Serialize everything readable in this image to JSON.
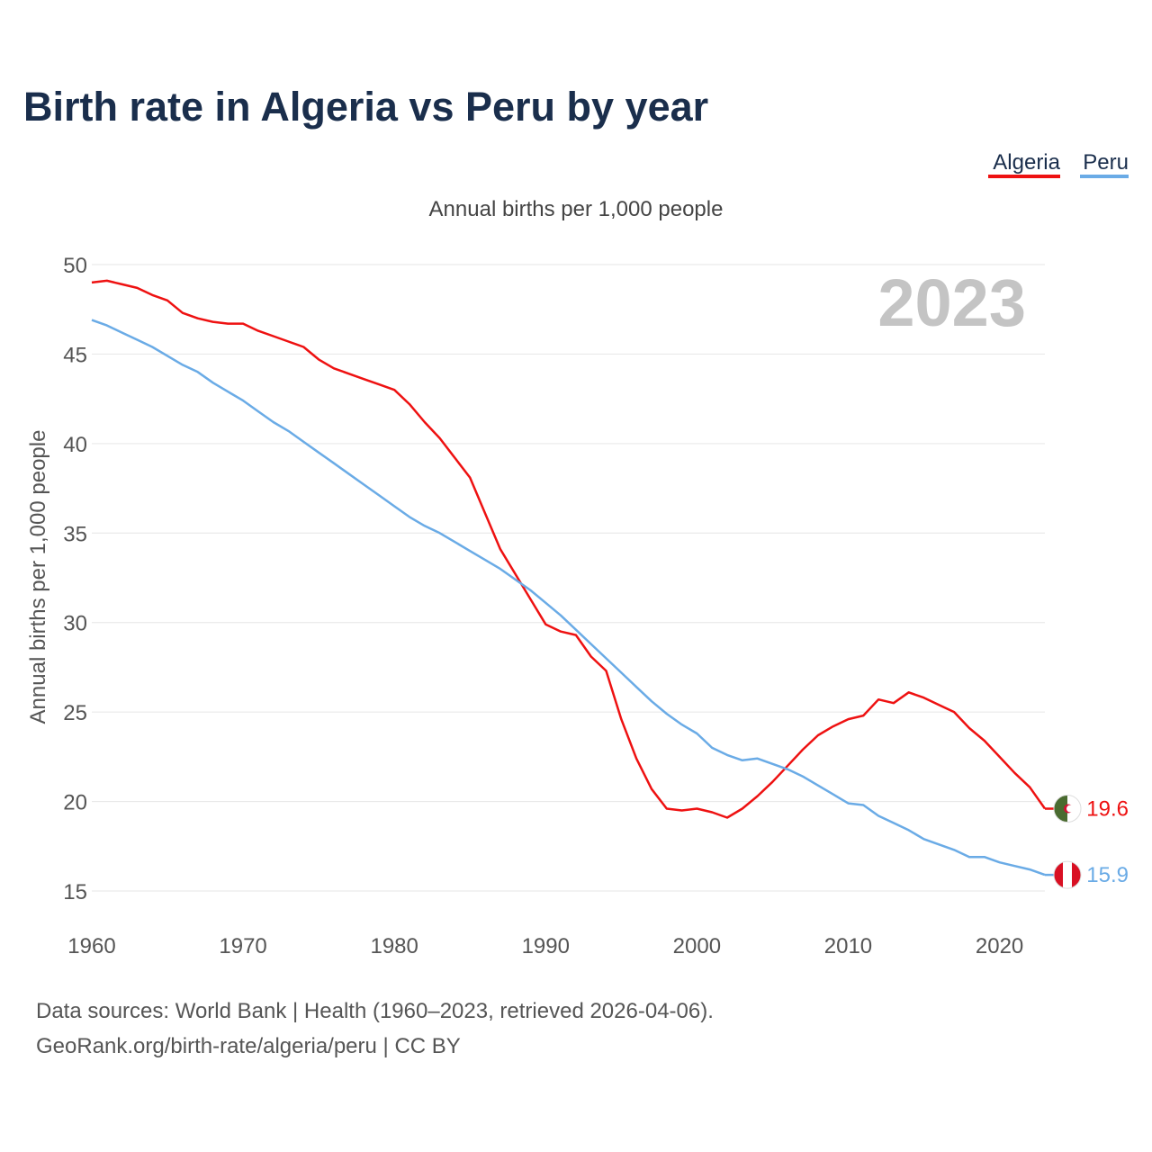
{
  "title": "Birth rate in Algeria vs Peru by year",
  "subtitle": "Annual births per 1,000 people",
  "ylabel": "Annual births per 1,000 people",
  "year_badge": "2023",
  "footer": {
    "line1": "Data sources: World Bank | Health (1960–2023, retrieved 2026-04-06).",
    "line2": "GeoRank.org/birth-rate/algeria/peru | CC BY"
  },
  "colors": {
    "algeria": "#ee1111",
    "peru": "#6aabe6",
    "title": "#1a2e4c",
    "grid": "#e6e6e6",
    "tick": "#555555",
    "badge": "#c4c4c4",
    "algeria_flag_green": "#4a6b30",
    "peru_flag_red": "#d91023"
  },
  "chart_data": {
    "type": "line",
    "title": "Birth rate in Algeria vs Peru by year",
    "subtitle": "Annual births per 1,000 people",
    "ylabel": "Annual births per 1,000 people",
    "xlabel": "",
    "xlim": [
      1960,
      2023
    ],
    "ylim": [
      15,
      50
    ],
    "xticks": [
      1960,
      1970,
      1980,
      1990,
      2000,
      2010,
      2020
    ],
    "yticks": [
      15,
      20,
      25,
      30,
      35,
      40,
      45,
      50
    ],
    "grid": true,
    "legend": "top-right",
    "x": [
      1960,
      1961,
      1962,
      1963,
      1964,
      1965,
      1966,
      1967,
      1968,
      1969,
      1970,
      1971,
      1972,
      1973,
      1974,
      1975,
      1976,
      1977,
      1978,
      1979,
      1980,
      1981,
      1982,
      1983,
      1984,
      1985,
      1986,
      1987,
      1988,
      1989,
      1990,
      1991,
      1992,
      1993,
      1994,
      1995,
      1996,
      1997,
      1998,
      1999,
      2000,
      2001,
      2002,
      2003,
      2004,
      2005,
      2006,
      2007,
      2008,
      2009,
      2010,
      2011,
      2012,
      2013,
      2014,
      2015,
      2016,
      2017,
      2018,
      2019,
      2020,
      2021,
      2022,
      2023
    ],
    "series": [
      {
        "name": "Algeria",
        "key": "algeria",
        "last_label": "19.6",
        "values": [
          49.0,
          49.1,
          48.9,
          48.7,
          48.3,
          48.0,
          47.3,
          47.0,
          46.8,
          46.7,
          46.7,
          46.3,
          46.0,
          45.7,
          45.4,
          44.7,
          44.2,
          43.9,
          43.6,
          43.3,
          43.0,
          42.2,
          41.2,
          40.3,
          39.2,
          38.1,
          36.1,
          34.1,
          32.7,
          31.3,
          29.9,
          29.5,
          29.3,
          28.1,
          27.3,
          24.6,
          22.4,
          20.7,
          19.6,
          19.5,
          19.6,
          19.4,
          19.1,
          19.6,
          20.3,
          21.1,
          22.0,
          22.9,
          23.7,
          24.2,
          24.6,
          24.8,
          25.7,
          25.5,
          26.1,
          25.8,
          25.4,
          25.0,
          24.1,
          23.4,
          22.5,
          21.6,
          20.8,
          19.6
        ]
      },
      {
        "name": "Peru",
        "key": "peru",
        "last_label": "15.9",
        "values": [
          46.9,
          46.6,
          46.2,
          45.8,
          45.4,
          44.9,
          44.4,
          44.0,
          43.4,
          42.9,
          42.4,
          41.8,
          41.2,
          40.7,
          40.1,
          39.5,
          38.9,
          38.3,
          37.7,
          37.1,
          36.5,
          35.9,
          35.4,
          35.0,
          34.5,
          34.0,
          33.5,
          33.0,
          32.4,
          31.8,
          31.1,
          30.4,
          29.6,
          28.8,
          28.0,
          27.2,
          26.4,
          25.6,
          24.9,
          24.3,
          23.8,
          23.0,
          22.6,
          22.3,
          22.4,
          22.1,
          21.8,
          21.4,
          20.9,
          20.4,
          19.9,
          19.8,
          19.2,
          18.8,
          18.4,
          17.9,
          17.6,
          17.3,
          16.9,
          16.9,
          16.6,
          16.4,
          16.2,
          15.9
        ]
      }
    ]
  }
}
